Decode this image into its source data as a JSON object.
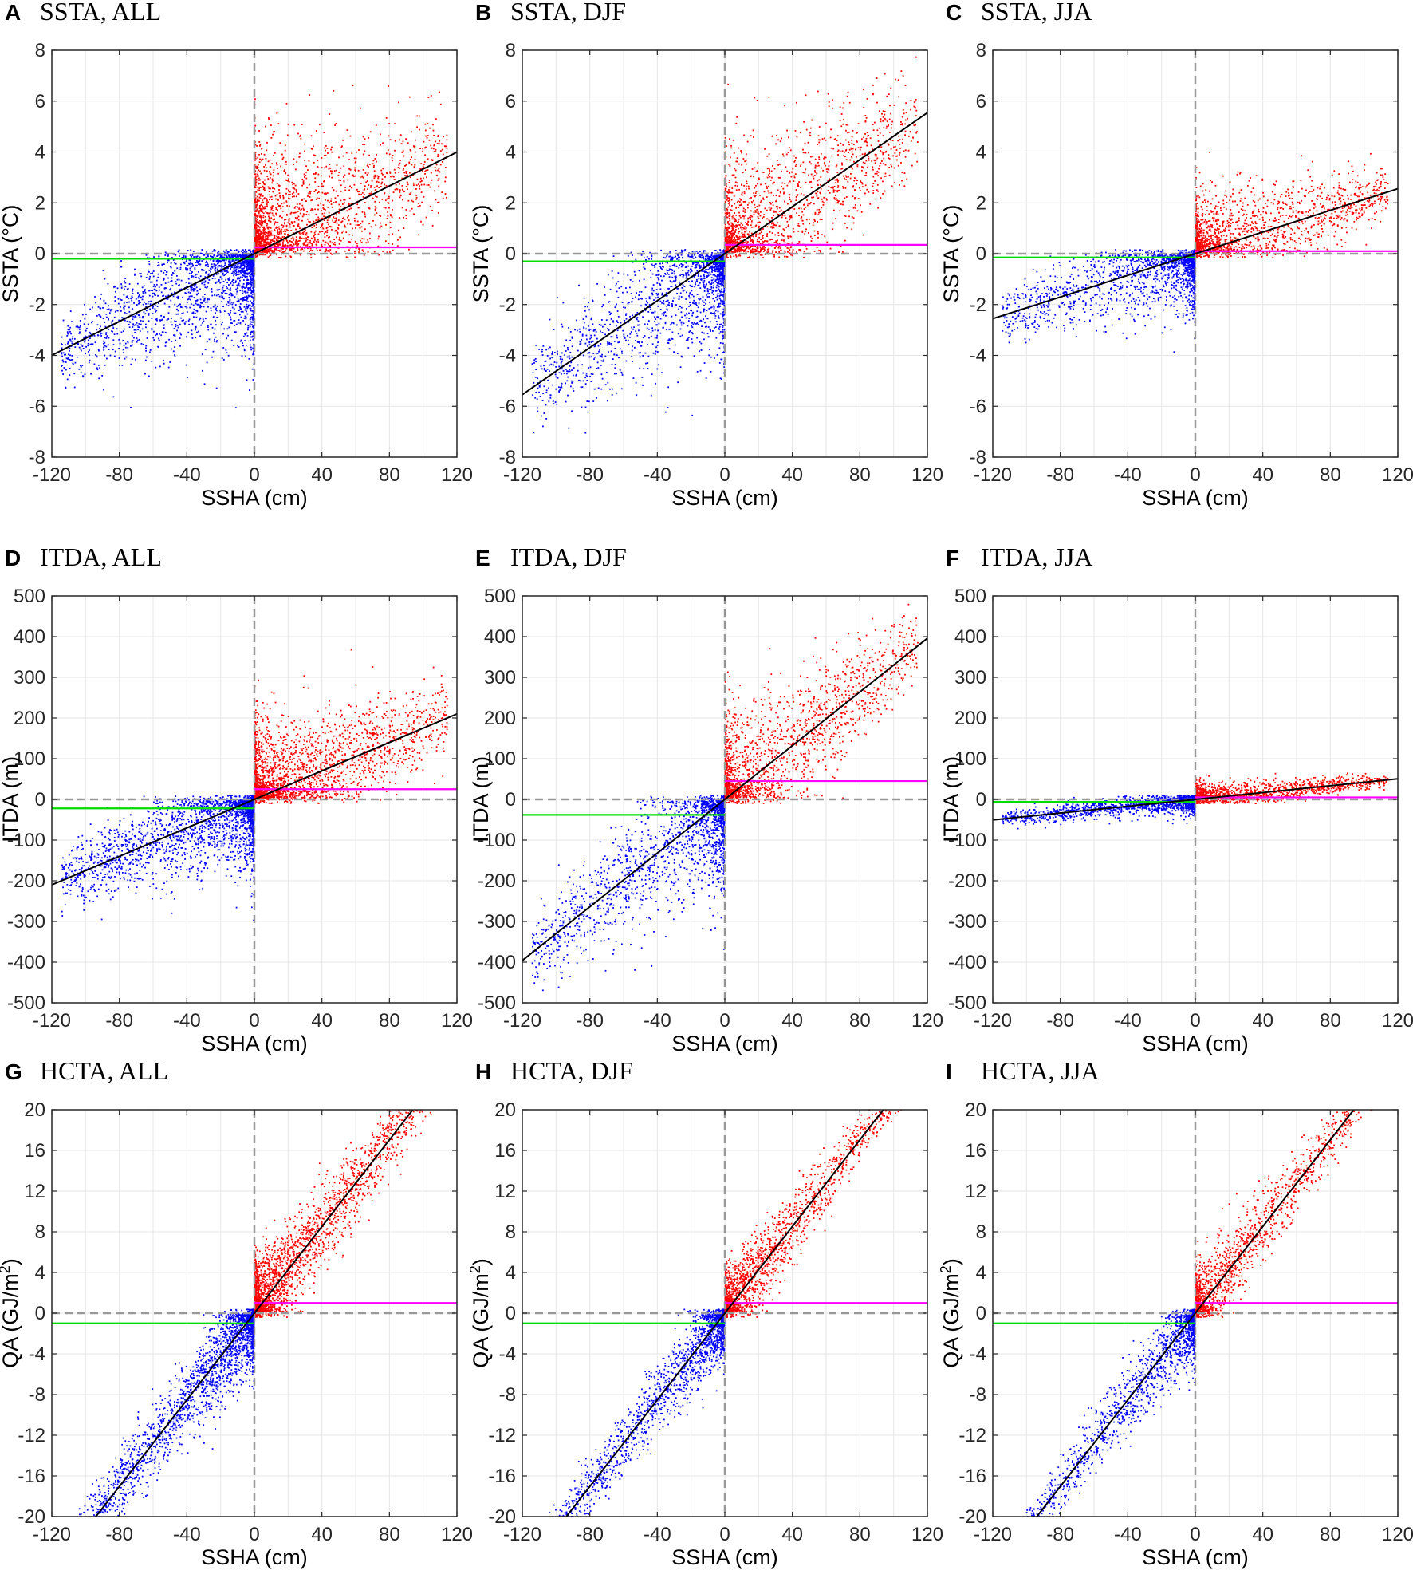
{
  "colors": {
    "positive": "#ff0000",
    "negative": "#0000ff",
    "fit": "#000000",
    "positive_mean": "#ff00ff",
    "negative_mean": "#00dd00",
    "zero_line": "#999999",
    "grid": "#e6e6e6"
  },
  "chart_data": [
    {
      "type": "scatter",
      "letter": "A",
      "title": "SSTA, ALL",
      "xlabel": "SSHA (cm)",
      "ylabel": "SSTA (°C)",
      "xlim": [
        -120,
        120
      ],
      "ylim": [
        -8,
        8
      ],
      "xticks": [
        -120,
        -80,
        -40,
        0,
        40,
        80,
        120
      ],
      "yticks": [
        -8,
        -6,
        -4,
        -2,
        0,
        2,
        4,
        6,
        8
      ],
      "fit_slope": 0.0333,
      "positive_mean": 0.25,
      "negative_mean": -0.2,
      "spread": {
        "pos": [
          1,
          1.4
        ],
        "neg": [
          0.6,
          1.5
        ]
      },
      "point_count": [
        2200,
        2200
      ]
    },
    {
      "type": "scatter",
      "letter": "B",
      "title": "SSTA, DJF",
      "xlabel": "SSHA (cm)",
      "ylabel": "SSTA (°C)",
      "xlim": [
        -120,
        120
      ],
      "ylim": [
        -8,
        8
      ],
      "xticks": [
        -120,
        -80,
        -40,
        0,
        40,
        80,
        120
      ],
      "yticks": [
        -8,
        -6,
        -4,
        -2,
        0,
        2,
        4,
        6,
        8
      ],
      "fit_slope": 0.0462,
      "positive_mean": 0.35,
      "negative_mean": -0.3,
      "spread": {
        "pos": [
          0.9,
          1.2
        ],
        "neg": [
          0.8,
          1.3
        ]
      },
      "point_count": [
        1800,
        1800
      ]
    },
    {
      "type": "scatter",
      "letter": "C",
      "title": "SSTA, JJA",
      "xlabel": "SSHA (cm)",
      "ylabel": "SSTA (°C)",
      "xlim": [
        -120,
        120
      ],
      "ylim": [
        -8,
        8
      ],
      "xticks": [
        -120,
        -80,
        -40,
        0,
        40,
        80,
        120
      ],
      "yticks": [
        -8,
        -6,
        -4,
        -2,
        0,
        2,
        4,
        6,
        8
      ],
      "fit_slope": 0.0213,
      "positive_mean": 0.1,
      "negative_mean": -0.15,
      "spread": {
        "pos": [
          0.5,
          0.8
        ],
        "neg": [
          0.5,
          0.8
        ]
      },
      "point_count": [
        1600,
        1600
      ]
    },
    {
      "type": "scatter",
      "letter": "D",
      "title": "ITDA, ALL",
      "xlabel": "SSHA (cm)",
      "ylabel": "ITDA (m)",
      "xlim": [
        -120,
        120
      ],
      "ylim": [
        -500,
        500
      ],
      "xticks": [
        -120,
        -80,
        -40,
        0,
        40,
        80,
        120
      ],
      "yticks": [
        -500,
        -400,
        -300,
        -200,
        -100,
        0,
        100,
        200,
        300,
        400,
        500
      ],
      "fit_slope": 1.75,
      "positive_mean": 25,
      "negative_mean": -22,
      "spread": {
        "pos": [
          45,
          60
        ],
        "neg": [
          35,
          60
        ]
      },
      "point_count": [
        2200,
        2200
      ]
    },
    {
      "type": "scatter",
      "letter": "E",
      "title": "ITDA, DJF",
      "xlabel": "SSHA (cm)",
      "ylabel": "ITDA (m)",
      "xlim": [
        -120,
        120
      ],
      "ylim": [
        -500,
        500
      ],
      "xticks": [
        -120,
        -80,
        -40,
        0,
        40,
        80,
        120
      ],
      "yticks": [
        -500,
        -400,
        -300,
        -200,
        -100,
        0,
        100,
        200,
        300,
        400,
        500
      ],
      "fit_slope": 3.3,
      "positive_mean": 45,
      "negative_mean": -38,
      "spread": {
        "pos": [
          45,
          70
        ],
        "neg": [
          45,
          70
        ]
      },
      "point_count": [
        1800,
        1800
      ]
    },
    {
      "type": "scatter",
      "letter": "F",
      "title": "ITDA, JJA",
      "xlabel": "SSHA (cm)",
      "ylabel": "ITDA (m)",
      "xlim": [
        -120,
        120
      ],
      "ylim": [
        -500,
        500
      ],
      "xticks": [
        -120,
        -80,
        -40,
        0,
        40,
        80,
        120
      ],
      "yticks": [
        -500,
        -400,
        -300,
        -200,
        -100,
        0,
        100,
        200,
        300,
        400,
        500
      ],
      "fit_slope": 0.42,
      "positive_mean": 5,
      "negative_mean": -6,
      "spread": {
        "pos": [
          8,
          12
        ],
        "neg": [
          8,
          10
        ]
      },
      "point_count": [
        1500,
        1500
      ]
    },
    {
      "type": "scatter",
      "letter": "G",
      "title": "HCTA, ALL",
      "xlabel": "SSHA (cm)",
      "ylabel": "QA (GJ/m2)",
      "ylabel_base": "QA (GJ/m",
      "ylabel_sup": "2",
      "ylabel_end": ")",
      "xlim": [
        -120,
        120
      ],
      "ylim": [
        -20,
        20
      ],
      "xticks": [
        -120,
        -80,
        -40,
        0,
        40,
        80,
        120
      ],
      "yticks": [
        -20,
        -16,
        -12,
        -8,
        -4,
        0,
        4,
        8,
        12,
        16,
        20
      ],
      "fit_slope": 0.213,
      "positive_mean": 1.0,
      "negative_mean": -1.0,
      "spread": {
        "pos": [
          1.2,
          1.6
        ],
        "neg": [
          1.2,
          1.6
        ]
      },
      "point_count": [
        2400,
        2400
      ]
    },
    {
      "type": "scatter",
      "letter": "H",
      "title": "HCTA, DJF",
      "xlabel": "SSHA (cm)",
      "ylabel": "QA (GJ/m2)",
      "ylabel_base": "QA (GJ/m",
      "ylabel_sup": "2",
      "ylabel_end": ")",
      "xlim": [
        -120,
        120
      ],
      "ylim": [
        -20,
        20
      ],
      "xticks": [
        -120,
        -80,
        -40,
        0,
        40,
        80,
        120
      ],
      "yticks": [
        -20,
        -16,
        -12,
        -8,
        -4,
        0,
        4,
        8,
        12,
        16,
        20
      ],
      "fit_slope": 0.213,
      "positive_mean": 1.0,
      "negative_mean": -1.0,
      "spread": {
        "pos": [
          1.0,
          1.4
        ],
        "neg": [
          1.0,
          1.4
        ]
      },
      "point_count": [
        1800,
        1800
      ]
    },
    {
      "type": "scatter",
      "letter": "I",
      "title": "HCTA, JJA",
      "xlabel": "SSHA (cm)",
      "ylabel": "QA (GJ/m2)",
      "ylabel_base": "QA (GJ/m",
      "ylabel_sup": "2",
      "ylabel_end": ")",
      "xlim": [
        -120,
        120
      ],
      "ylim": [
        -20,
        20
      ],
      "xticks": [
        -120,
        -80,
        -40,
        0,
        40,
        80,
        120
      ],
      "yticks": [
        -20,
        -16,
        -12,
        -8,
        -4,
        0,
        4,
        8,
        12,
        16,
        20
      ],
      "fit_slope": 0.213,
      "positive_mean": 1.0,
      "negative_mean": -1.0,
      "spread": {
        "pos": [
          1.0,
          1.4
        ],
        "neg": [
          1.0,
          1.4
        ]
      },
      "point_count": [
        1600,
        1600
      ]
    }
  ]
}
